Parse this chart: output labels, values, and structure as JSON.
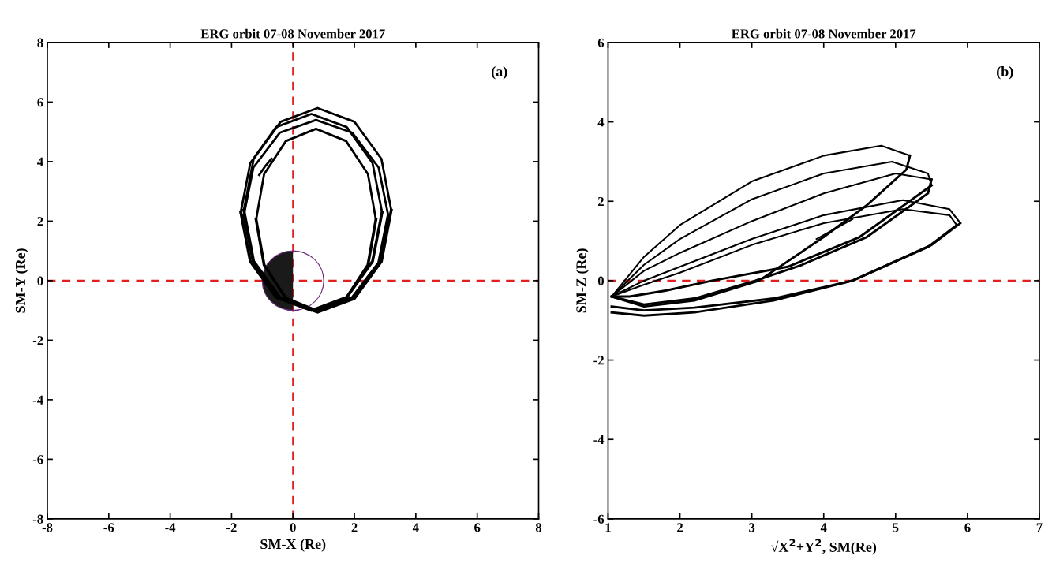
{
  "chart_data": [
    {
      "type": "line",
      "title": "ERG orbit 07-08 November 2017",
      "xlabel": "SM-X (Re)",
      "ylabel": "SM-Y (Re)",
      "annotations": [
        "(a)"
      ],
      "xlim": [
        -8,
        8
      ],
      "ylim": [
        -8,
        8
      ],
      "xticks": [
        -8,
        -6,
        -4,
        -2,
        0,
        2,
        4,
        6,
        8
      ],
      "yticks": [
        -8,
        -6,
        -4,
        -2,
        0,
        2,
        4,
        6,
        8
      ],
      "grid": false,
      "legend": false,
      "marker": "none",
      "line_style": "solid",
      "ref_lines": [
        {
          "axis": "x",
          "value": 0,
          "color": "#e02020",
          "line_style": "dashed"
        },
        {
          "axis": "y",
          "value": 0,
          "color": "#e02020",
          "line_style": "dashed"
        }
      ],
      "series": [
        {
          "color": "#000000",
          "x": [
            -1.6,
            -1.28,
            -0.4,
            0.8,
            2.0,
            2.88,
            3.2
          ],
          "values": [
            2.37,
            4.09,
            5.34,
            5.8,
            5.34,
            4.09,
            2.37
          ]
        },
        {
          "color": "#000000",
          "x": [
            -1.6,
            -1.28,
            -0.4,
            0.8,
            2.0,
            2.88,
            3.2
          ],
          "values": [
            2.37,
            0.65,
            -0.6,
            -1.06,
            -0.6,
            0.65,
            2.37
          ]
        },
        {
          "color": "#000000",
          "x": [
            -1.7,
            -1.39,
            -0.55,
            0.6,
            1.75,
            2.59,
            2.9
          ],
          "values": [
            2.3,
            3.95,
            5.16,
            5.6,
            5.16,
            3.95,
            2.3
          ]
        },
        {
          "color": "#000000",
          "x": [
            -1.7,
            -1.39,
            -0.55,
            0.6,
            1.75,
            2.59,
            2.9
          ],
          "values": [
            2.3,
            0.65,
            -0.56,
            -1.0,
            -0.56,
            0.65,
            2.3
          ]
        },
        {
          "color": "#000000",
          "x": [
            -1.6,
            -1.29,
            -0.43,
            0.75,
            1.93,
            2.79,
            3.1
          ],
          "values": [
            2.2,
            3.8,
            4.97,
            5.4,
            4.97,
            3.8,
            2.2
          ]
        },
        {
          "color": "#000000",
          "x": [
            -1.6,
            -1.29,
            -0.43,
            0.75,
            1.93,
            2.79,
            3.1
          ],
          "values": [
            2.2,
            0.6,
            -0.57,
            -1.0,
            -0.57,
            0.6,
            2.2
          ]
        },
        {
          "color": "#000000",
          "x": [
            -1.2,
            -0.94,
            -0.23,
            0.75,
            1.73,
            2.44,
            2.7
          ],
          "values": [
            2.05,
            3.58,
            4.69,
            5.1,
            4.69,
            3.58,
            2.05
          ]
        },
        {
          "color": "#000000",
          "x": [
            -1.2,
            -0.94,
            -0.23,
            0.75,
            1.73,
            2.44,
            2.7
          ],
          "values": [
            2.05,
            0.53,
            -0.59,
            -1.0,
            -0.59,
            0.53,
            2.05
          ]
        },
        {
          "color": "#000000",
          "x": [
            -1.1,
            -0.9,
            -0.7
          ],
          "values": [
            3.55,
            3.85,
            4.1
          ]
        }
      ]
    },
    {
      "type": "line",
      "title": "ERG orbit 07-08 November 2017",
      "xlabel": "√X$^{2}$+Y$^{2}$, SM(Re)",
      "ylabel": "SM-Z (Re)",
      "annotations": [
        "(b)"
      ],
      "xlim": [
        1,
        7
      ],
      "ylim": [
        -6,
        6
      ],
      "xticks": [
        1,
        2,
        3,
        4,
        5,
        6,
        7
      ],
      "yticks": [
        -6,
        -4,
        -2,
        0,
        2,
        4,
        6
      ],
      "grid": false,
      "legend": false,
      "marker": "none",
      "line_style": "solid",
      "ref_lines": [
        {
          "axis": "y",
          "value": 0,
          "color": "#e02020",
          "line_style": "dashed"
        }
      ],
      "series": [
        {
          "color": "#000000",
          "x": [
            1.05,
            1.5,
            2.0,
            3.0,
            4.0,
            4.8,
            5.2
          ],
          "values": [
            -0.4,
            0.6,
            1.4,
            2.5,
            3.15,
            3.4,
            3.15
          ]
        },
        {
          "color": "#000000",
          "x": [
            1.05,
            1.5,
            2.2,
            3.1,
            4.0,
            4.6,
            5.15,
            5.2
          ],
          "values": [
            -0.4,
            -0.65,
            -0.5,
            0.0,
            1.1,
            1.9,
            2.8,
            3.15
          ]
        },
        {
          "color": "#000000",
          "x": [
            1.05,
            1.5,
            2.0,
            3.0,
            4.0,
            4.95,
            5.45,
            5.5
          ],
          "values": [
            -0.4,
            0.4,
            1.05,
            2.05,
            2.7,
            3.0,
            2.7,
            2.4
          ]
        },
        {
          "color": "#000000",
          "x": [
            1.05,
            1.3,
            1.8,
            2.45,
            3.5,
            4.5,
            5.5
          ],
          "values": [
            -0.4,
            -0.4,
            -0.25,
            0.0,
            0.35,
            1.1,
            2.4
          ]
        },
        {
          "color": "#000000",
          "x": [
            1.05,
            1.5,
            2.0,
            3.0,
            4.0,
            5.0,
            5.5
          ],
          "values": [
            -0.4,
            0.25,
            0.7,
            1.5,
            2.2,
            2.7,
            2.55
          ]
        },
        {
          "color": "#000000",
          "x": [
            1.05,
            1.5,
            2.2,
            3.05,
            3.7,
            4.6,
            5.45,
            5.5
          ],
          "values": [
            -0.4,
            -0.6,
            -0.45,
            0.0,
            0.4,
            1.1,
            2.2,
            2.55
          ]
        },
        {
          "color": "#000000",
          "x": [
            1.05,
            1.5,
            2.0,
            3.0,
            4.0,
            5.1,
            5.75,
            5.9
          ],
          "values": [
            -0.4,
            0.0,
            0.35,
            1.05,
            1.65,
            2.03,
            1.8,
            1.45
          ]
        },
        {
          "color": "#000000",
          "x": [
            1.05,
            1.5,
            2.2,
            3.3,
            4.4,
            5.5,
            5.9
          ],
          "values": [
            -0.8,
            -0.88,
            -0.8,
            -0.5,
            0.0,
            0.9,
            1.45
          ]
        },
        {
          "color": "#000000",
          "x": [
            1.05,
            1.5,
            2.0,
            3.0,
            4.0,
            5.1,
            5.75,
            5.85
          ],
          "values": [
            -0.4,
            -0.1,
            0.2,
            0.9,
            1.45,
            1.8,
            1.65,
            1.4
          ]
        },
        {
          "color": "#000000",
          "x": [
            1.05,
            1.5,
            2.2,
            3.3,
            4.4,
            5.45,
            5.85
          ],
          "values": [
            -0.65,
            -0.75,
            -0.68,
            -0.45,
            0.0,
            0.85,
            1.4
          ]
        },
        {
          "color": "#000000",
          "x": [
            3.9,
            4.15,
            4.4
          ],
          "values": [
            1.05,
            1.3,
            1.55
          ]
        }
      ]
    }
  ]
}
